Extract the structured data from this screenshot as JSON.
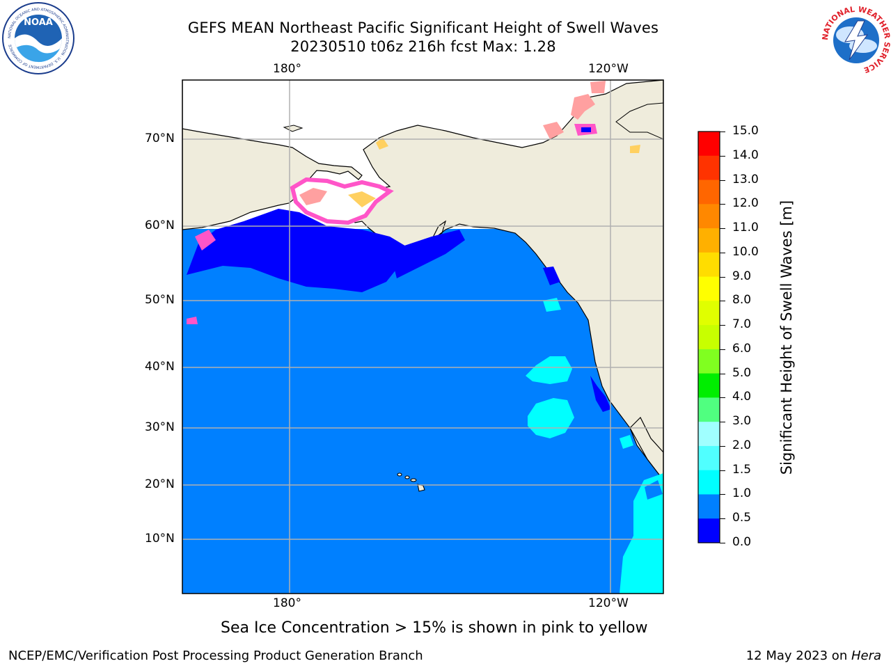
{
  "title": {
    "line1": "GEFS MEAN Northeast Pacific Significant Height of Swell Waves",
    "line2": "20230510 t06z 216h fcst   Max: 1.28"
  },
  "axes": {
    "lon_top": [
      "180°",
      "120°W"
    ],
    "lon_bottom": [
      "180°",
      "120°W"
    ],
    "lat": [
      "70°N",
      "60°N",
      "50°N",
      "40°N",
      "30°N",
      "20°N",
      "10°N"
    ],
    "grid": true
  },
  "map": {
    "region": "Northeast Pacific",
    "ocean_color": "#0080ff",
    "land_color": "#efecdc",
    "ice_colors": [
      "#ff55c8",
      "#ffa0a0",
      "#ffd060",
      "#ffff00"
    ]
  },
  "colorbar": {
    "label": "Significant Height of Swell Waves [m]",
    "ticks": [
      "15.0",
      "14.0",
      "13.0",
      "12.0",
      "11.0",
      "10.0",
      "9.0",
      "8.0",
      "7.0",
      "6.0",
      "5.0",
      "4.0",
      "3.0",
      "2.0",
      "1.5",
      "1.0",
      "0.5",
      "0.0"
    ],
    "colors": [
      "#ff0000",
      "#ff3300",
      "#ff6600",
      "#ff8800",
      "#ffb000",
      "#ffdd00",
      "#ffff00",
      "#e0ff00",
      "#c8ff00",
      "#80ff20",
      "#00ee00",
      "#50ff80",
      "#a0ffff",
      "#50ffff",
      "#00ffff",
      "#0080ff",
      "#0000ff"
    ]
  },
  "logos": {
    "noaa": {
      "text": "NOAA",
      "ring_text": "NATIONAL OCEANIC AND ATMOSPHERIC ADMINISTRATION · U.S. DEPARTMENT OF COMMERCE"
    },
    "nws": {
      "ring_text": "NATIONAL WEATHER SERVICE"
    }
  },
  "footnote": "Sea Ice Concentration > 15% is shown in pink to yellow",
  "footer": {
    "left": "NCEP/EMC/Verification Post Processing Product Generation Branch",
    "right_date": "12 May 2023 on ",
    "right_host": "Hera"
  }
}
